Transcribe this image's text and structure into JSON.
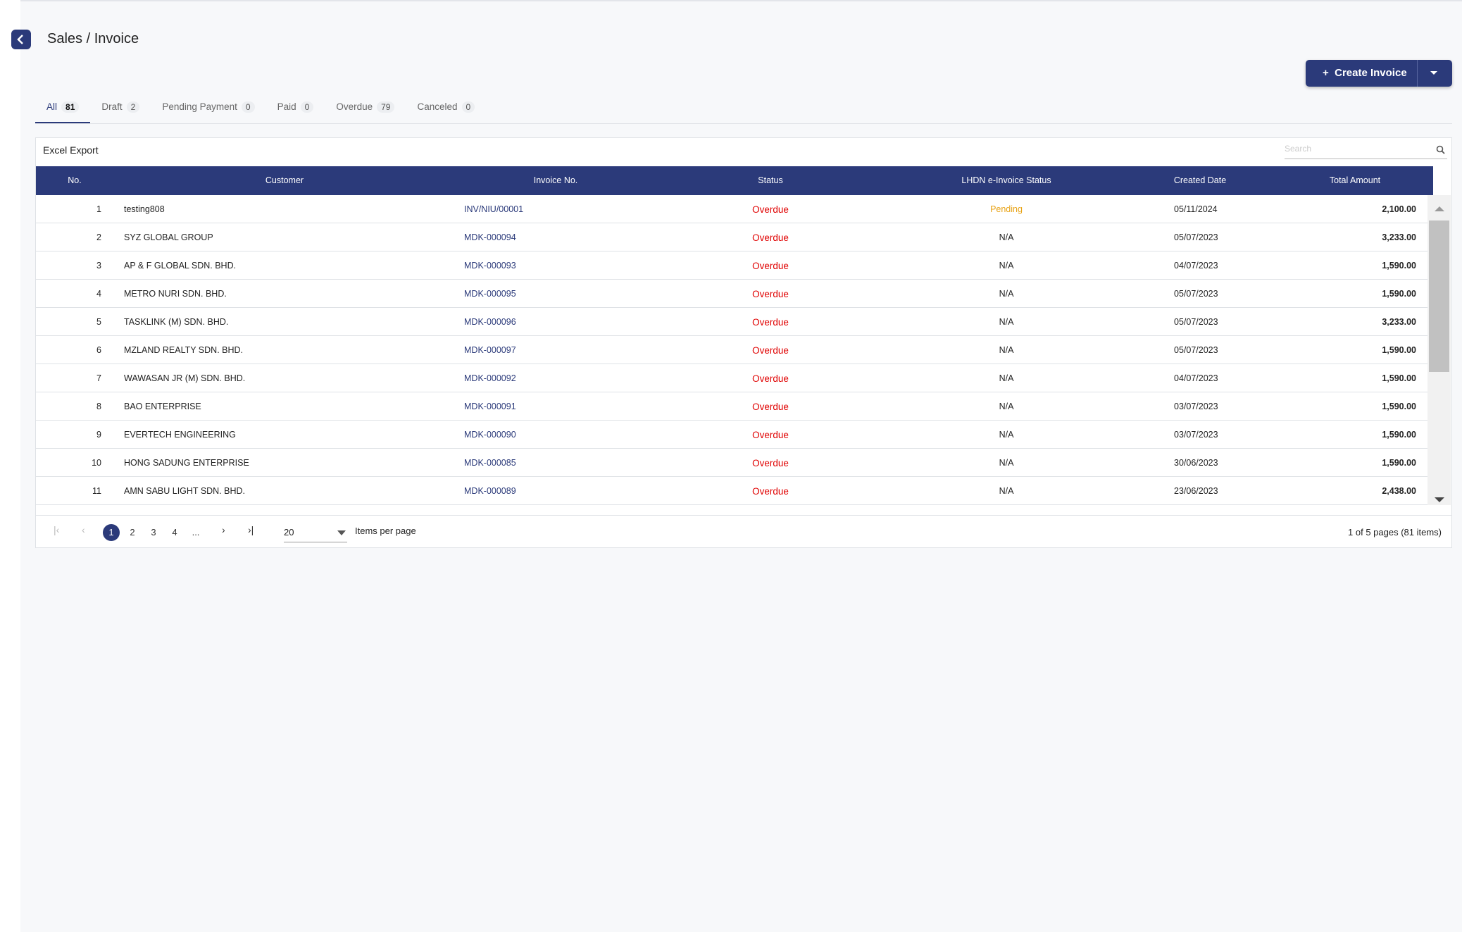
{
  "header": {
    "title": "Sales / Invoice",
    "create_button": "Create Invoice"
  },
  "tabs": [
    {
      "label": "All",
      "count": "81"
    },
    {
      "label": "Draft",
      "count": "2"
    },
    {
      "label": "Pending Payment",
      "count": "0"
    },
    {
      "label": "Paid",
      "count": "0"
    },
    {
      "label": "Overdue",
      "count": "79"
    },
    {
      "label": "Canceled",
      "count": "0"
    }
  ],
  "toolbar": {
    "export": "Excel Export",
    "search_placeholder": "Search"
  },
  "table": {
    "columns": [
      "No.",
      "Customer",
      "Invoice No.",
      "Status",
      "LHDN e-Invoice Status",
      "Created Date",
      "Total Amount"
    ],
    "rows": [
      [
        "1",
        "testing808",
        "INV/NIU/00001",
        "Overdue",
        "Pending",
        "05/11/2024",
        "2,100.00"
      ],
      [
        "2",
        "SYZ GLOBAL GROUP",
        "MDK-000094",
        "Overdue",
        "N/A",
        "05/07/2023",
        "3,233.00"
      ],
      [
        "3",
        "AP & F GLOBAL SDN. BHD.",
        "MDK-000093",
        "Overdue",
        "N/A",
        "04/07/2023",
        "1,590.00"
      ],
      [
        "4",
        "METRO NURI SDN. BHD.",
        "MDK-000095",
        "Overdue",
        "N/A",
        "05/07/2023",
        "1,590.00"
      ],
      [
        "5",
        "TASKLINK (M) SDN. BHD.",
        "MDK-000096",
        "Overdue",
        "N/A",
        "05/07/2023",
        "3,233.00"
      ],
      [
        "6",
        "MZLAND REALTY SDN. BHD.",
        "MDK-000097",
        "Overdue",
        "N/A",
        "05/07/2023",
        "1,590.00"
      ],
      [
        "7",
        "WAWASAN JR (M) SDN. BHD.",
        "MDK-000092",
        "Overdue",
        "N/A",
        "04/07/2023",
        "1,590.00"
      ],
      [
        "8",
        "BAO ENTERPRISE",
        "MDK-000091",
        "Overdue",
        "N/A",
        "03/07/2023",
        "1,590.00"
      ],
      [
        "9",
        "EVERTECH ENGINEERING",
        "MDK-000090",
        "Overdue",
        "N/A",
        "03/07/2023",
        "1,590.00"
      ],
      [
        "10",
        "HONG SADUNG ENTERPRISE",
        "MDK-000085",
        "Overdue",
        "N/A",
        "30/06/2023",
        "1,590.00"
      ],
      [
        "11",
        "AMN SABU LIGHT SDN. BHD.",
        "MDK-000089",
        "Overdue",
        "N/A",
        "23/06/2023",
        "2,438.00"
      ]
    ]
  },
  "pagination": {
    "pages": [
      "1",
      "2",
      "3",
      "4",
      "..."
    ],
    "page_size": "20",
    "items_per_page": "Items per page",
    "summary": "1 of 5 pages (81 items)"
  }
}
